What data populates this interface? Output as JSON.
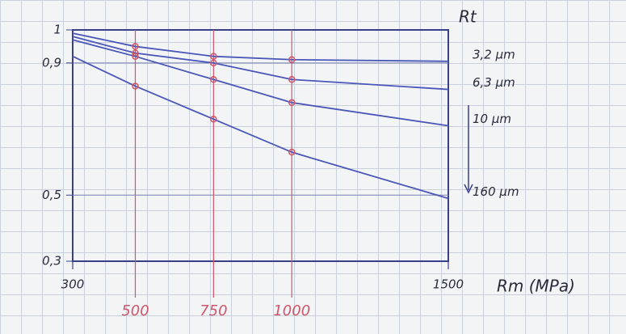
{
  "chart_data": {
    "type": "line",
    "x_label": "Rm (MPa)",
    "y_label": "Rt",
    "x": [
      300,
      500,
      750,
      1000,
      1500
    ],
    "series": [
      {
        "name": "3,2 µm",
        "color": "#4a56b8",
        "values": [
          0.99,
          0.95,
          0.92,
          0.91,
          0.905
        ]
      },
      {
        "name": "6,3 µm",
        "color": "#4a56b8",
        "values": [
          0.98,
          0.93,
          0.9,
          0.85,
          0.82
        ]
      },
      {
        "name": "10 µm",
        "color": "#4a56b8",
        "values": [
          0.97,
          0.92,
          0.85,
          0.78,
          0.71
        ]
      },
      {
        "name": "160 µm",
        "color": "#4a56b8",
        "values": [
          0.92,
          0.83,
          0.73,
          0.63,
          0.49
        ]
      }
    ],
    "xlim": [
      300,
      1500
    ],
    "xticks": [
      300,
      500,
      750,
      1000,
      1500
    ],
    "ylim": [
      0.3,
      1
    ],
    "yticks": [
      1,
      {
        "value": 0.9,
        "label": "0,9"
      },
      {
        "value": 0.5,
        "label": "0,5"
      },
      {
        "value": 0.3,
        "label": "0,3"
      }
    ],
    "marker_color": "#d0566a",
    "grid": true
  }
}
